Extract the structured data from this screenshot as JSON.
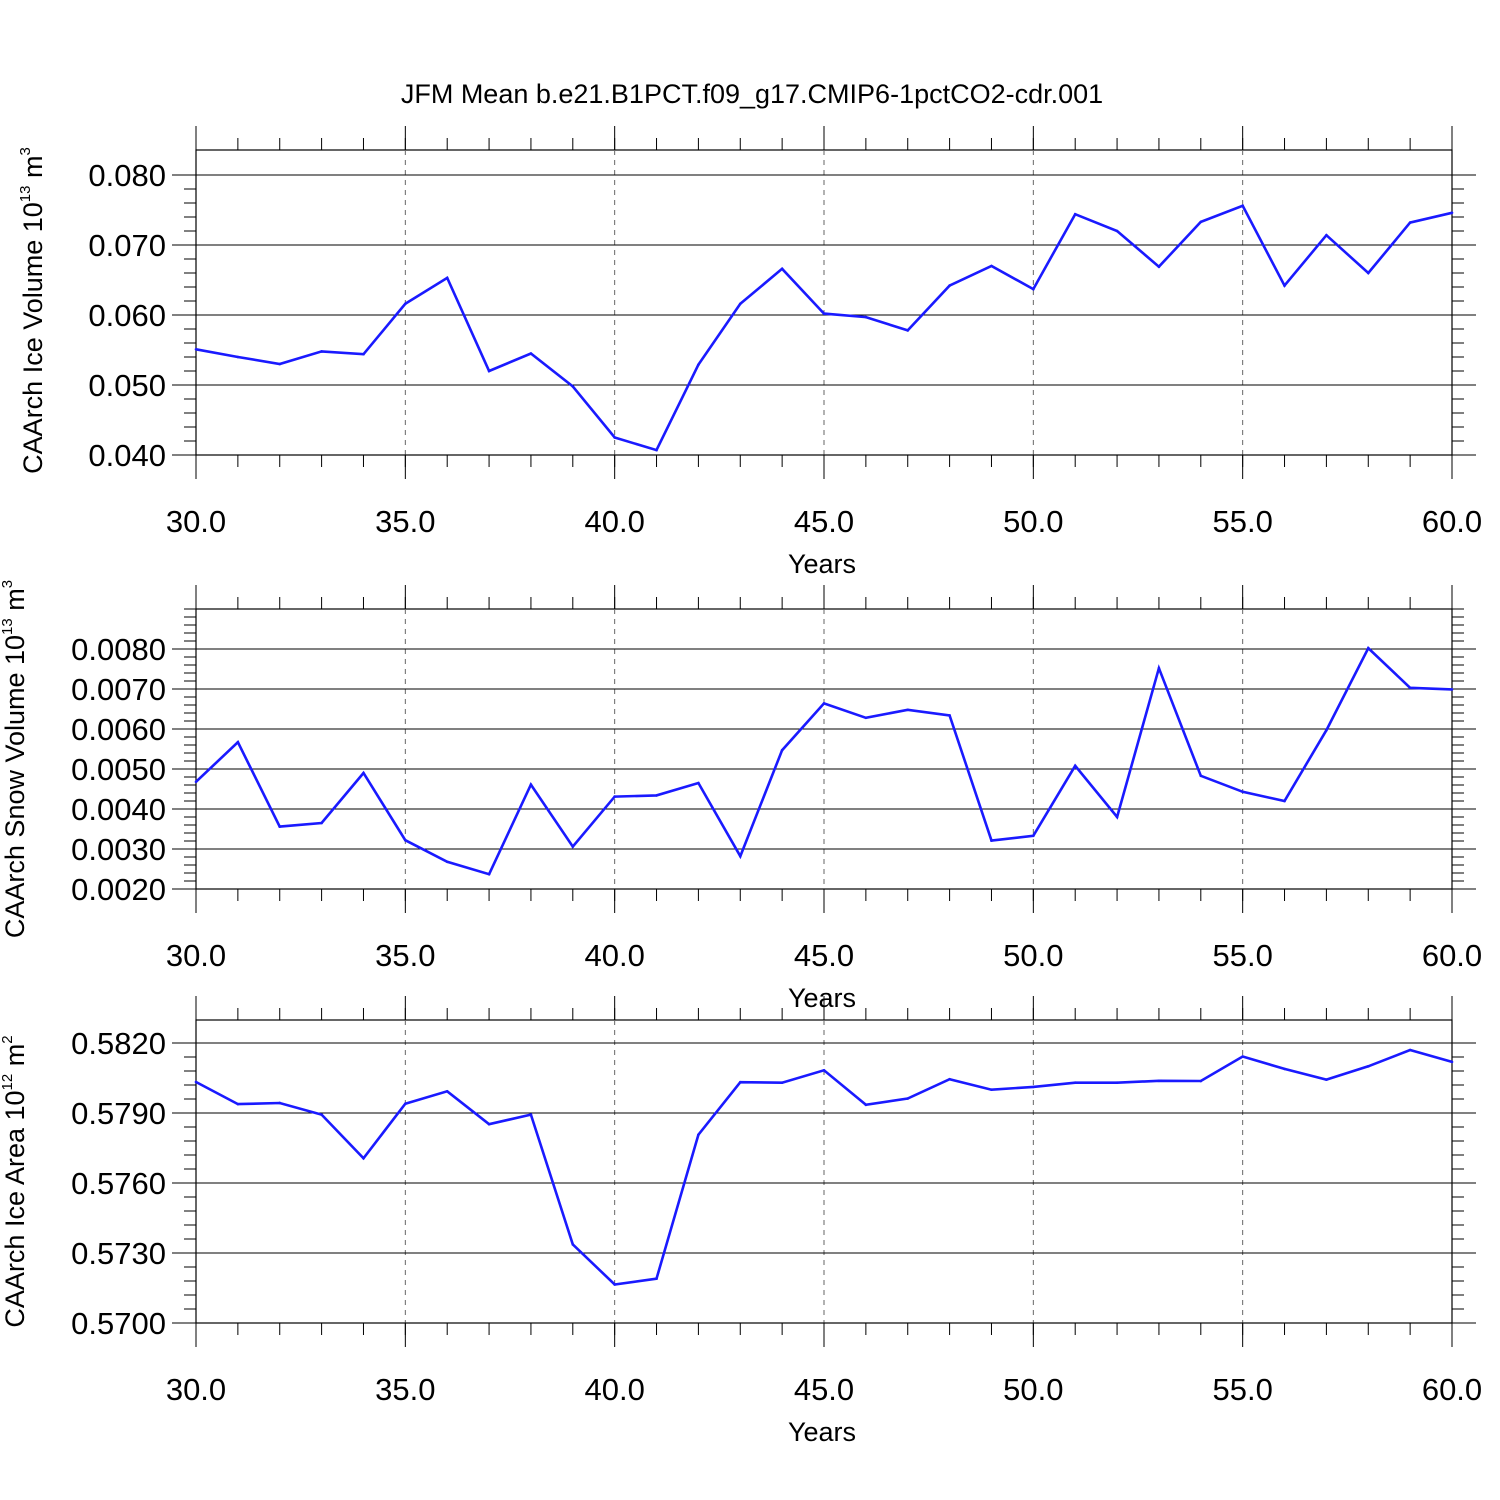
{
  "title": "JFM Mean b.e21.B1PCT.f09_g17.CMIP6-1pctCO2-cdr.001",
  "colors": {
    "series": "#1a1aff",
    "axis": "#000000",
    "grid": "#666666"
  },
  "chart_data": [
    {
      "type": "line",
      "xlabel": "Years",
      "ylabel": {
        "main": "CAArch Ice Volume 10",
        "exp": "13",
        "unit": " m",
        "unit_exp": "3"
      },
      "xlim": [
        30,
        60
      ],
      "ylim": [
        0.04,
        0.08
      ],
      "xticks": [
        "30.0",
        "35.0",
        "40.0",
        "45.0",
        "50.0",
        "55.0",
        "60.0"
      ],
      "xtick_values": [
        30,
        35,
        40,
        45,
        50,
        55,
        60
      ],
      "yticks": [
        "0.040",
        "0.050",
        "0.060",
        "0.070",
        "0.080"
      ],
      "ytick_values": [
        0.04,
        0.05,
        0.06,
        0.07,
        0.08
      ],
      "grid": "vertical dashed at major x ticks",
      "x": [
        30,
        31,
        32,
        33,
        34,
        35,
        36,
        37,
        38,
        39,
        40,
        41,
        42,
        43,
        44,
        45,
        46,
        47,
        48,
        49,
        50,
        51,
        52,
        53,
        54,
        55,
        56,
        57,
        58,
        59,
        60
      ],
      "values": [
        0.0551,
        0.054,
        0.053,
        0.0548,
        0.0544,
        0.0616,
        0.0653,
        0.052,
        0.0545,
        0.0498,
        0.0425,
        0.0407,
        0.0529,
        0.0616,
        0.0666,
        0.0602,
        0.0597,
        0.0578,
        0.0642,
        0.067,
        0.0637,
        0.0744,
        0.072,
        0.0669,
        0.0733,
        0.0756,
        0.0642,
        0.0714,
        0.066,
        0.0732,
        0.0746
      ]
    },
    {
      "type": "line",
      "xlabel": "Years",
      "ylabel": {
        "main": "CAArch Snow Volume 10",
        "exp": "13",
        "unit": " m",
        "unit_exp": "3"
      },
      "xlim": [
        30,
        60
      ],
      "ylim": [
        0.002,
        0.009
      ],
      "xticks": [
        "30.0",
        "35.0",
        "40.0",
        "45.0",
        "50.0",
        "55.0",
        "60.0"
      ],
      "xtick_values": [
        30,
        35,
        40,
        45,
        50,
        55,
        60
      ],
      "yticks": [
        "0.0020",
        "0.0030",
        "0.0040",
        "0.0050",
        "0.0060",
        "0.0070",
        "0.0080"
      ],
      "ytick_values": [
        0.002,
        0.003,
        0.004,
        0.005,
        0.006,
        0.007,
        0.008
      ],
      "grid": "vertical dashed at major x ticks",
      "x": [
        30,
        31,
        32,
        33,
        34,
        35,
        36,
        37,
        38,
        39,
        40,
        41,
        42,
        43,
        44,
        45,
        46,
        47,
        48,
        49,
        50,
        51,
        52,
        53,
        54,
        55,
        56,
        57,
        58,
        59,
        60
      ],
      "values": [
        0.00468,
        0.00567,
        0.00356,
        0.00365,
        0.0049,
        0.00322,
        0.00268,
        0.00237,
        0.00461,
        0.00306,
        0.00431,
        0.00434,
        0.00465,
        0.00282,
        0.00547,
        0.00664,
        0.00628,
        0.00648,
        0.00634,
        0.00321,
        0.00333,
        0.00508,
        0.0038,
        0.00752,
        0.00483,
        0.00443,
        0.0042,
        0.00597,
        0.00802,
        0.00703,
        0.00699
      ]
    },
    {
      "type": "line",
      "xlabel": "Years",
      "ylabel": {
        "main": "CAArch Ice Area 10",
        "exp": "12",
        "unit": " m",
        "unit_exp": "2"
      },
      "xlim": [
        30,
        60
      ],
      "ylim": [
        0.57,
        0.582
      ],
      "xticks": [
        "30.0",
        "35.0",
        "40.0",
        "45.0",
        "50.0",
        "55.0",
        "60.0"
      ],
      "xtick_values": [
        30,
        35,
        40,
        45,
        50,
        55,
        60
      ],
      "yticks": [
        "0.5700",
        "0.5730",
        "0.5760",
        "0.5790",
        "0.5820"
      ],
      "ytick_values": [
        0.57,
        0.573,
        0.576,
        0.579,
        0.582
      ],
      "grid": "vertical dashed at major x ticks",
      "x": [
        30,
        31,
        32,
        33,
        34,
        35,
        36,
        37,
        38,
        39,
        40,
        41,
        42,
        43,
        44,
        45,
        46,
        47,
        48,
        49,
        50,
        51,
        52,
        53,
        54,
        55,
        56,
        57,
        58,
        59,
        60
      ],
      "values": [
        0.58033,
        0.57938,
        0.57943,
        0.57893,
        0.57706,
        0.5794,
        0.57993,
        0.57852,
        0.57893,
        0.57337,
        0.57165,
        0.5719,
        0.57807,
        0.58032,
        0.5803,
        0.58083,
        0.57935,
        0.57962,
        0.58045,
        0.58,
        0.58012,
        0.5803,
        0.5803,
        0.58038,
        0.58037,
        0.58142,
        0.58089,
        0.58043,
        0.581,
        0.5817,
        0.58119
      ]
    }
  ]
}
